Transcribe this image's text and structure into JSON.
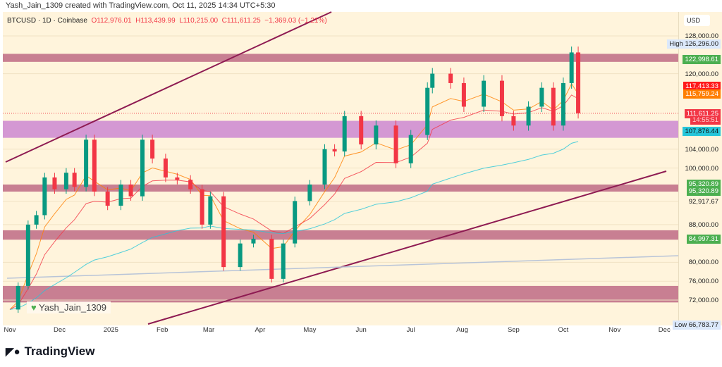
{
  "credit": "Yash_Jain_1309 created with TradingView.com, Oct 11, 2025 14:34 UTC+5:30",
  "legend": {
    "symbol": "BTCUSD · 1D · Coinbase",
    "o": "O112,976.01",
    "h": "H113,439.99",
    "l": "L110,215.00",
    "c": "C111,611.25",
    "chg": "−1,369.03 (−1.21%)"
  },
  "currency": "USD",
  "watermark": "Yash_Jain_1309",
  "brand": "TradingView",
  "colors": {
    "bg": "#fff4dc",
    "up": "#089981",
    "down": "#f23645",
    "band": "#b5587a",
    "purple": "#c57ad0",
    "channel": "#8e1b52"
  },
  "chart_data": {
    "type": "candlestick",
    "y_ticks": [
      "128,000.00",
      "120,000.00",
      "104,000.00",
      "100,000.00",
      "92,917.67",
      "88,000.00",
      "80,000.00",
      "76,000.00",
      "72,000.00"
    ],
    "y_tick_values": [
      128000,
      120000,
      104000,
      100000,
      92917.67,
      88000,
      80000,
      76000,
      72000
    ],
    "ylim": [
      66000,
      132000
    ],
    "x_ticks": [
      "Nov",
      "Dec",
      "2025",
      "Feb",
      "Mar",
      "Apr",
      "May",
      "Jun",
      "Jul",
      "Aug",
      "Sep",
      "Oct",
      "Nov",
      "Dec"
    ],
    "x_tick_dates": [
      "2024-11-01",
      "2024-12-01",
      "2025-01-01",
      "2025-02-01",
      "2025-03-01",
      "2025-04-01",
      "2025-05-01",
      "2025-06-01",
      "2025-07-01",
      "2025-08-01",
      "2025-09-01",
      "2025-10-01",
      "2025-11-01",
      "2025-12-01"
    ],
    "closes": [
      [
        "2024-11-01",
        70000
      ],
      [
        "2024-11-06",
        75000
      ],
      [
        "2024-11-12",
        88000
      ],
      [
        "2024-11-17",
        90000
      ],
      [
        "2024-11-22",
        98000
      ],
      [
        "2024-11-28",
        95500
      ],
      [
        "2024-12-05",
        99000
      ],
      [
        "2024-12-10",
        96000
      ],
      [
        "2024-12-17",
        106000
      ],
      [
        "2024-12-22",
        95000
      ],
      [
        "2024-12-30",
        92000
      ],
      [
        "2025-01-07",
        96500
      ],
      [
        "2025-01-13",
        94000
      ],
      [
        "2025-01-20",
        106000
      ],
      [
        "2025-01-26",
        102000
      ],
      [
        "2025-02-03",
        98000
      ],
      [
        "2025-02-10",
        97500
      ],
      [
        "2025-02-18",
        95500
      ],
      [
        "2025-02-25",
        88000
      ],
      [
        "2025-03-02",
        94000
      ],
      [
        "2025-03-10",
        79000
      ],
      [
        "2025-03-20",
        84000
      ],
      [
        "2025-03-28",
        85000
      ],
      [
        "2025-04-08",
        76500
      ],
      [
        "2025-04-15",
        84000
      ],
      [
        "2025-04-22",
        93000
      ],
      [
        "2025-05-01",
        96500
      ],
      [
        "2025-05-10",
        104000
      ],
      [
        "2025-05-16",
        103500
      ],
      [
        "2025-05-22",
        111000
      ],
      [
        "2025-06-01",
        105000
      ],
      [
        "2025-06-10",
        109000
      ],
      [
        "2025-06-22",
        101000
      ],
      [
        "2025-07-01",
        107000
      ],
      [
        "2025-07-11",
        117000
      ],
      [
        "2025-07-14",
        120000
      ],
      [
        "2025-07-25",
        118000
      ],
      [
        "2025-08-02",
        113000
      ],
      [
        "2025-08-14",
        118500
      ],
      [
        "2025-08-25",
        111000
      ],
      [
        "2025-09-01",
        109000
      ],
      [
        "2025-09-10",
        113000
      ],
      [
        "2025-09-18",
        117000
      ],
      [
        "2025-09-25",
        109000
      ],
      [
        "2025-10-01",
        118000
      ],
      [
        "2025-10-06",
        124500
      ],
      [
        "2025-10-10",
        111611.25
      ]
    ],
    "price_labels": [
      {
        "text": "High",
        "value": "126,296.00",
        "price": 126296,
        "bg": "#dbe8fb",
        "fg": "#222"
      },
      {
        "text": "",
        "value": "122,998.61",
        "price": 122998.61,
        "bg": "#4caf50",
        "fg": "#fff"
      },
      {
        "text": "",
        "value": "117,413.33",
        "price": 117413.33,
        "bg": "#ff1a1a",
        "fg": "#fff"
      },
      {
        "text": "",
        "value": "115,759.24",
        "price": 115759.24,
        "bg": "#ff7f00",
        "fg": "#fff"
      },
      {
        "text": "",
        "value": "111,611.25",
        "price": 111611.25,
        "bg": "#f23645",
        "fg": "#fff"
      },
      {
        "text": "",
        "value": "14:55:51",
        "price": 110300,
        "bg": "#f23645",
        "fg": "#ffd0d0"
      },
      {
        "text": "",
        "value": "107,876.44",
        "price": 107876.44,
        "bg": "#26c6da",
        "fg": "#111"
      },
      {
        "text": "",
        "value": "95,320.89",
        "price": 96700,
        "bg": "#4caf50",
        "fg": "#fff"
      },
      {
        "text": "",
        "value": "95,320.89",
        "price": 95100,
        "bg": "#4caf50",
        "fg": "#fff"
      },
      {
        "text": "",
        "value": "84,997.31",
        "price": 84997.31,
        "bg": "#4caf50",
        "fg": "#fff"
      },
      {
        "text": "Low",
        "value": "66,783.77",
        "price": 66783.77,
        "bg": "#dbe8fb",
        "fg": "#222"
      }
    ],
    "zones": [
      {
        "from": 122500,
        "to": 124200,
        "color": "#b5587a"
      },
      {
        "from": 106400,
        "to": 110000,
        "color": "#c57ad0"
      },
      {
        "from": 95000,
        "to": 96500,
        "color": "#b5587a"
      },
      {
        "from": 84800,
        "to": 86800,
        "color": "#b5587a"
      },
      {
        "from": 71500,
        "to": 75000,
        "color": "#b5587a"
      }
    ]
  }
}
